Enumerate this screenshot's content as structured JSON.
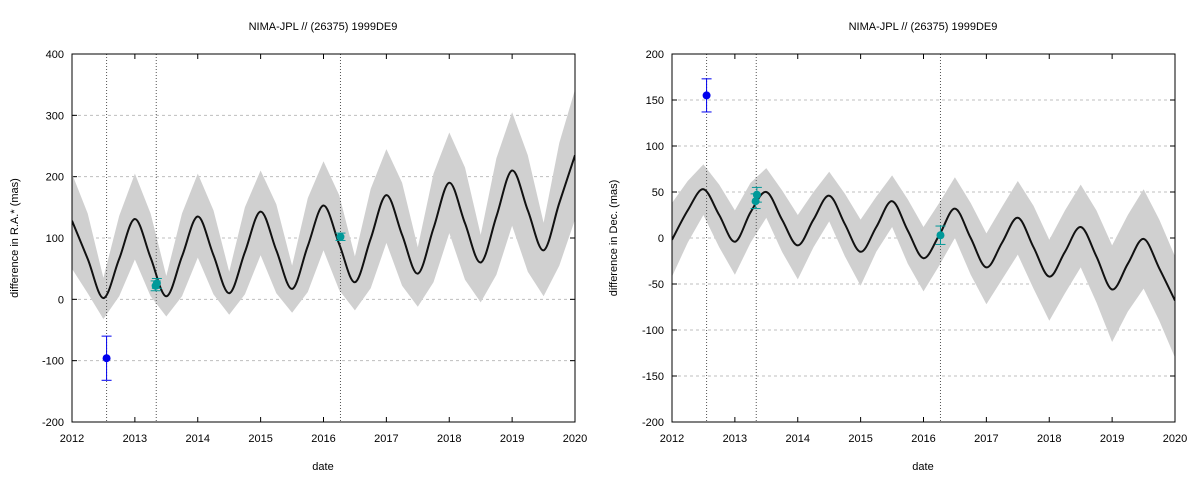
{
  "chart_data": [
    {
      "type": "line",
      "title": "NIMA-JPL // (26375) 1999DE9",
      "xlabel": "date",
      "ylabel": "difference in R.A.* (mas)",
      "xlim": [
        2012,
        2020
      ],
      "ylim": [
        -200,
        400
      ],
      "x_ticks": [
        "2012",
        "2013",
        "2014",
        "2015",
        "2016",
        "2017",
        "2018",
        "2019",
        "2020"
      ],
      "y_ticks": [
        "-200",
        "-100",
        "0",
        "100",
        "200",
        "300",
        "400"
      ],
      "grid": true,
      "vlines": [
        2012.55,
        2013.34,
        2016.27
      ],
      "band_color": "#d0d0d0",
      "line_color": "#111111",
      "series": [
        {
          "x": [
            2012.0,
            2012.25,
            2012.5,
            2012.75,
            2013.0,
            2013.25,
            2013.5,
            2013.75,
            2014.0,
            2014.25,
            2014.5,
            2014.75,
            2015.0,
            2015.25,
            2015.5,
            2015.75,
            2016.0,
            2016.25,
            2016.5,
            2016.75,
            2017.0,
            2017.25,
            2017.5,
            2017.75,
            2018.0,
            2018.25,
            2018.5,
            2018.75,
            2019.0,
            2019.25,
            2019.5,
            2019.75,
            2020.0
          ],
          "y": [
            128,
            66,
            2,
            66,
            131,
            68,
            5,
            70,
            135,
            72,
            10,
            77,
            143,
            80,
            17,
            87,
            153,
            90,
            28,
            99,
            170,
            105,
            42,
            116,
            190,
            124,
            60,
            135,
            210,
            145,
            80,
            157,
            235
          ],
          "upper": [
            205,
            140,
            35,
            136,
            205,
            140,
            38,
            140,
            205,
            145,
            45,
            150,
            210,
            155,
            55,
            165,
            225,
            170,
            70,
            180,
            245,
            190,
            85,
            205,
            272,
            215,
            105,
            230,
            305,
            235,
            125,
            255,
            342
          ],
          "lower": [
            50,
            10,
            -32,
            5,
            65,
            5,
            -28,
            5,
            68,
            8,
            -25,
            8,
            72,
            10,
            -22,
            12,
            80,
            15,
            -18,
            18,
            92,
            22,
            -12,
            28,
            108,
            32,
            -5,
            40,
            120,
            45,
            5,
            55,
            130
          ]
        }
      ],
      "points": [
        {
          "x": 2012.55,
          "y": -96,
          "err": 36,
          "color": "#0000ee"
        },
        {
          "x": 2013.33,
          "y": 22,
          "err": 8,
          "color": "#009999"
        },
        {
          "x": 2013.35,
          "y": 26,
          "err": 8,
          "color": "#009999"
        },
        {
          "x": 2016.27,
          "y": 102,
          "err": 6,
          "color": "#009999"
        }
      ]
    },
    {
      "type": "line",
      "title": "NIMA-JPL // (26375) 1999DE9",
      "xlabel": "date",
      "ylabel": "difference in Dec. (mas)",
      "xlim": [
        2012,
        2020
      ],
      "ylim": [
        -200,
        200
      ],
      "x_ticks": [
        "2012",
        "2013",
        "2014",
        "2015",
        "2016",
        "2017",
        "2018",
        "2019",
        "2020"
      ],
      "y_ticks": [
        "-200",
        "-150",
        "-100",
        "-50",
        "0",
        "50",
        "100",
        "150",
        "200"
      ],
      "grid": true,
      "vlines": [
        2012.55,
        2013.34,
        2016.27
      ],
      "band_color": "#d0d0d0",
      "line_color": "#111111",
      "series": [
        {
          "x": [
            2012.0,
            2012.25,
            2012.5,
            2012.75,
            2013.0,
            2013.25,
            2013.5,
            2013.75,
            2014.0,
            2014.25,
            2014.5,
            2014.75,
            2015.0,
            2015.25,
            2015.5,
            2015.75,
            2016.0,
            2016.25,
            2016.5,
            2016.75,
            2017.0,
            2017.25,
            2017.5,
            2017.75,
            2018.0,
            2018.25,
            2018.5,
            2018.75,
            2019.0,
            2019.25,
            2019.5,
            2019.75,
            2020.0
          ],
          "y": [
            -2,
            30,
            53,
            25,
            -4,
            28,
            50,
            20,
            -8,
            20,
            46,
            15,
            -15,
            12,
            40,
            8,
            -22,
            3,
            32,
            0,
            -32,
            -5,
            22,
            -10,
            -42,
            -15,
            12,
            -20,
            -56,
            -28,
            -1,
            -33,
            -68
          ],
          "upper": [
            38,
            62,
            80,
            58,
            30,
            60,
            76,
            52,
            25,
            50,
            72,
            48,
            20,
            45,
            68,
            42,
            12,
            38,
            66,
            38,
            5,
            34,
            62,
            35,
            -2,
            30,
            58,
            30,
            -8,
            25,
            53,
            20,
            -20
          ],
          "lower": [
            -42,
            -5,
            25,
            -10,
            -40,
            -5,
            22,
            -15,
            -45,
            -10,
            18,
            -20,
            -52,
            -15,
            12,
            -28,
            -58,
            -30,
            0,
            -40,
            -72,
            -45,
            -18,
            -55,
            -90,
            -60,
            -32,
            -70,
            -113,
            -80,
            -55,
            -90,
            -130
          ]
        }
      ],
      "points": [
        {
          "x": 2012.55,
          "y": 155,
          "err": 18,
          "color": "#0000ee"
        },
        {
          "x": 2013.33,
          "y": 40,
          "err": 8,
          "color": "#009999"
        },
        {
          "x": 2013.35,
          "y": 47,
          "err": 8,
          "color": "#009999"
        },
        {
          "x": 2016.27,
          "y": 3,
          "err": 10,
          "color": "#009999"
        }
      ]
    }
  ]
}
